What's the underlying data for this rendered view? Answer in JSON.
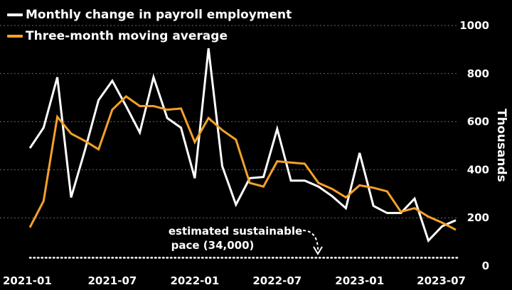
{
  "chart_data": {
    "type": "line",
    "xlabel": "",
    "ylabel": "Thousands",
    "ylim": [
      0,
      1000
    ],
    "yticks": [
      0,
      200,
      400,
      600,
      800,
      1000
    ],
    "x_start": "2021-01",
    "x_tick_labels": [
      "2021-01",
      "2021-07",
      "2022-01",
      "2022-07",
      "2023-01",
      "2023-07"
    ],
    "x_tick_index": [
      0,
      6,
      12,
      18,
      24,
      30
    ],
    "grid": "horizontal dotted",
    "legend_placement": "top-left",
    "series": [
      {
        "name": "Monthly change in payroll employment",
        "color": "#ffffff",
        "values": [
          490,
          575,
          785,
          285,
          480,
          690,
          770,
          665,
          555,
          785,
          615,
          575,
          365,
          905,
          415,
          255,
          365,
          370,
          570,
          355,
          355,
          330,
          290,
          240,
          470,
          250,
          220,
          220,
          280,
          105,
          165,
          190
        ]
      },
      {
        "name": "Three-month moving average",
        "color": "#f5a12c",
        "values": [
          160,
          270,
          620,
          550,
          520,
          485,
          650,
          705,
          665,
          665,
          650,
          655,
          515,
          615,
          565,
          525,
          345,
          330,
          435,
          430,
          425,
          345,
          320,
          285,
          335,
          325,
          310,
          225,
          240,
          205,
          180,
          150
        ]
      }
    ],
    "reference_line": {
      "value": 34,
      "style": "dotted",
      "color": "#ffffff"
    },
    "annotation": {
      "line1": "estimated sustainable",
      "line2": "pace (34,000)"
    }
  }
}
